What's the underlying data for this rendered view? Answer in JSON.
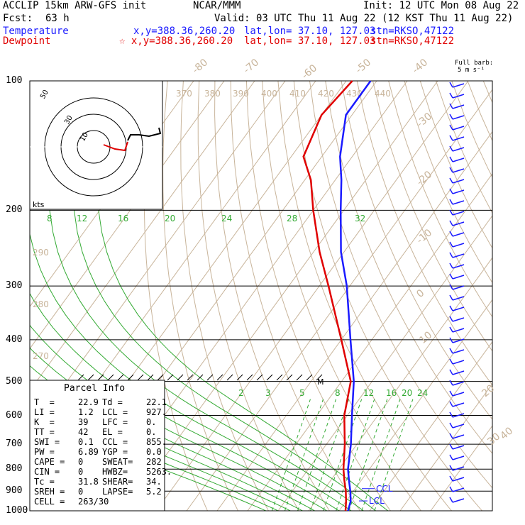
{
  "header": {
    "model": "ACCLIP 15km ARW-GFS init",
    "center": "NCAR/MMM",
    "init": "Init: 12 UTC Mon 08 Aug 22",
    "fcst_label": "Fcst:",
    "fcst_value": "63 h",
    "valid": "Valid: 03 UTC Thu 11 Aug 22 (12 KST Thu 11 Aug 22)",
    "temp_label": "Temperature",
    "temp_xy": "x,y=388.36,260.20",
    "temp_latlon": "lat,lon= 37.10, 127.03",
    "temp_stn": "stn=RKSO,47122",
    "dew_label": "Dewpoint",
    "dew_xy": "☆ x,y=388.36,260.20",
    "dew_latlon": "lat,lon= 37.10, 127.03",
    "dew_stn": "stn=RKSO,47122",
    "barb_title_1": "Full barb:",
    "barb_title_2": "5 m s⁻¹"
  },
  "colors": {
    "temperature": "#1a1aff",
    "dewpoint": "#e00000",
    "isotherm": "#c8b49a",
    "theta": "#c8b49a",
    "moist": "#33aa33",
    "wind": "#1a1aff"
  },
  "chart_data": {
    "type": "line",
    "title": "",
    "pressure_levels": [
      100,
      200,
      300,
      400,
      500,
      600,
      700,
      800,
      900,
      1000
    ],
    "isotherm_labels": [
      -80,
      -70,
      -60,
      -50,
      -40,
      -30,
      -20,
      -10,
      0,
      10,
      20,
      30,
      40
    ],
    "theta_labels_upper": [
      370,
      380,
      390,
      400,
      410,
      420,
      430,
      440
    ],
    "theta_labels_left": [
      290,
      280,
      270
    ],
    "mixing_ratio_upper": [
      "8",
      "12",
      "16",
      "20",
      "24",
      "28",
      "32"
    ],
    "mixing_ratio_lower": [
      "2",
      "3",
      "5",
      "8",
      "12",
      "16",
      "20",
      "24"
    ],
    "series": [
      {
        "name": "Temperature",
        "points": [
          {
            "p": 1000,
            "t": 22.9
          },
          {
            "p": 950,
            "t": 21.5
          },
          {
            "p": 900,
            "t": 19.0
          },
          {
            "p": 850,
            "t": 16.0
          },
          {
            "p": 800,
            "t": 13.0
          },
          {
            "p": 700,
            "t": 8.0
          },
          {
            "p": 600,
            "t": 1.5
          },
          {
            "p": 500,
            "t": -6.0
          },
          {
            "p": 400,
            "t": -17.0
          },
          {
            "p": 300,
            "t": -31.0
          },
          {
            "p": 250,
            "t": -41.0
          },
          {
            "p": 200,
            "t": -51.0
          },
          {
            "p": 170,
            "t": -58.0
          },
          {
            "p": 150,
            "t": -64.0
          },
          {
            "p": 120,
            "t": -72.0
          },
          {
            "p": 100,
            "t": -72.0
          }
        ]
      },
      {
        "name": "Dewpoint",
        "points": [
          {
            "p": 1000,
            "t": 22.1
          },
          {
            "p": 950,
            "t": 20.0
          },
          {
            "p": 900,
            "t": 17.5
          },
          {
            "p": 850,
            "t": 14.5
          },
          {
            "p": 800,
            "t": 11.5
          },
          {
            "p": 700,
            "t": 6.0
          },
          {
            "p": 600,
            "t": -1.0
          },
          {
            "p": 500,
            "t": -7.0
          },
          {
            "p": 400,
            "t": -20.0
          },
          {
            "p": 300,
            "t": -37.0
          },
          {
            "p": 250,
            "t": -48.0
          },
          {
            "p": 200,
            "t": -60.0
          },
          {
            "p": 170,
            "t": -68.0
          },
          {
            "p": 150,
            "t": -76.0
          },
          {
            "p": 120,
            "t": -80.0
          },
          {
            "p": 100,
            "t": -78.0
          }
        ]
      }
    ],
    "annotations": [
      "CCL",
      "LCL",
      "M"
    ]
  },
  "hodograph": {
    "unit_label": "kts",
    "rings": [
      "10",
      "30",
      "50"
    ]
  },
  "parcel": {
    "title": "Parcel Info",
    "rows": [
      [
        "T  =",
        "22.9",
        "Td =",
        "22.1"
      ],
      [
        "LI =",
        "1.2",
        "LCL =",
        "927."
      ],
      [
        "K  =",
        "39",
        "LFC =",
        "0."
      ],
      [
        "TT =",
        "42",
        "EL =",
        "0."
      ],
      [
        "SWI =",
        "0.1",
        "CCL =",
        "855."
      ],
      [
        "PW =",
        "6.89",
        "YGP =",
        "0.0"
      ],
      [
        "CAPE =",
        "0",
        "SWEAT=",
        "282"
      ],
      [
        "CIN =",
        "0",
        "HWBZ=",
        "5263."
      ],
      [
        "Tc =",
        "31.8",
        "SHEAR=",
        "34."
      ],
      [
        "SREH =",
        "0",
        "LAPSE=",
        "5.2"
      ],
      [
        "CELL =",
        "263/30",
        "",
        ""
      ]
    ]
  }
}
